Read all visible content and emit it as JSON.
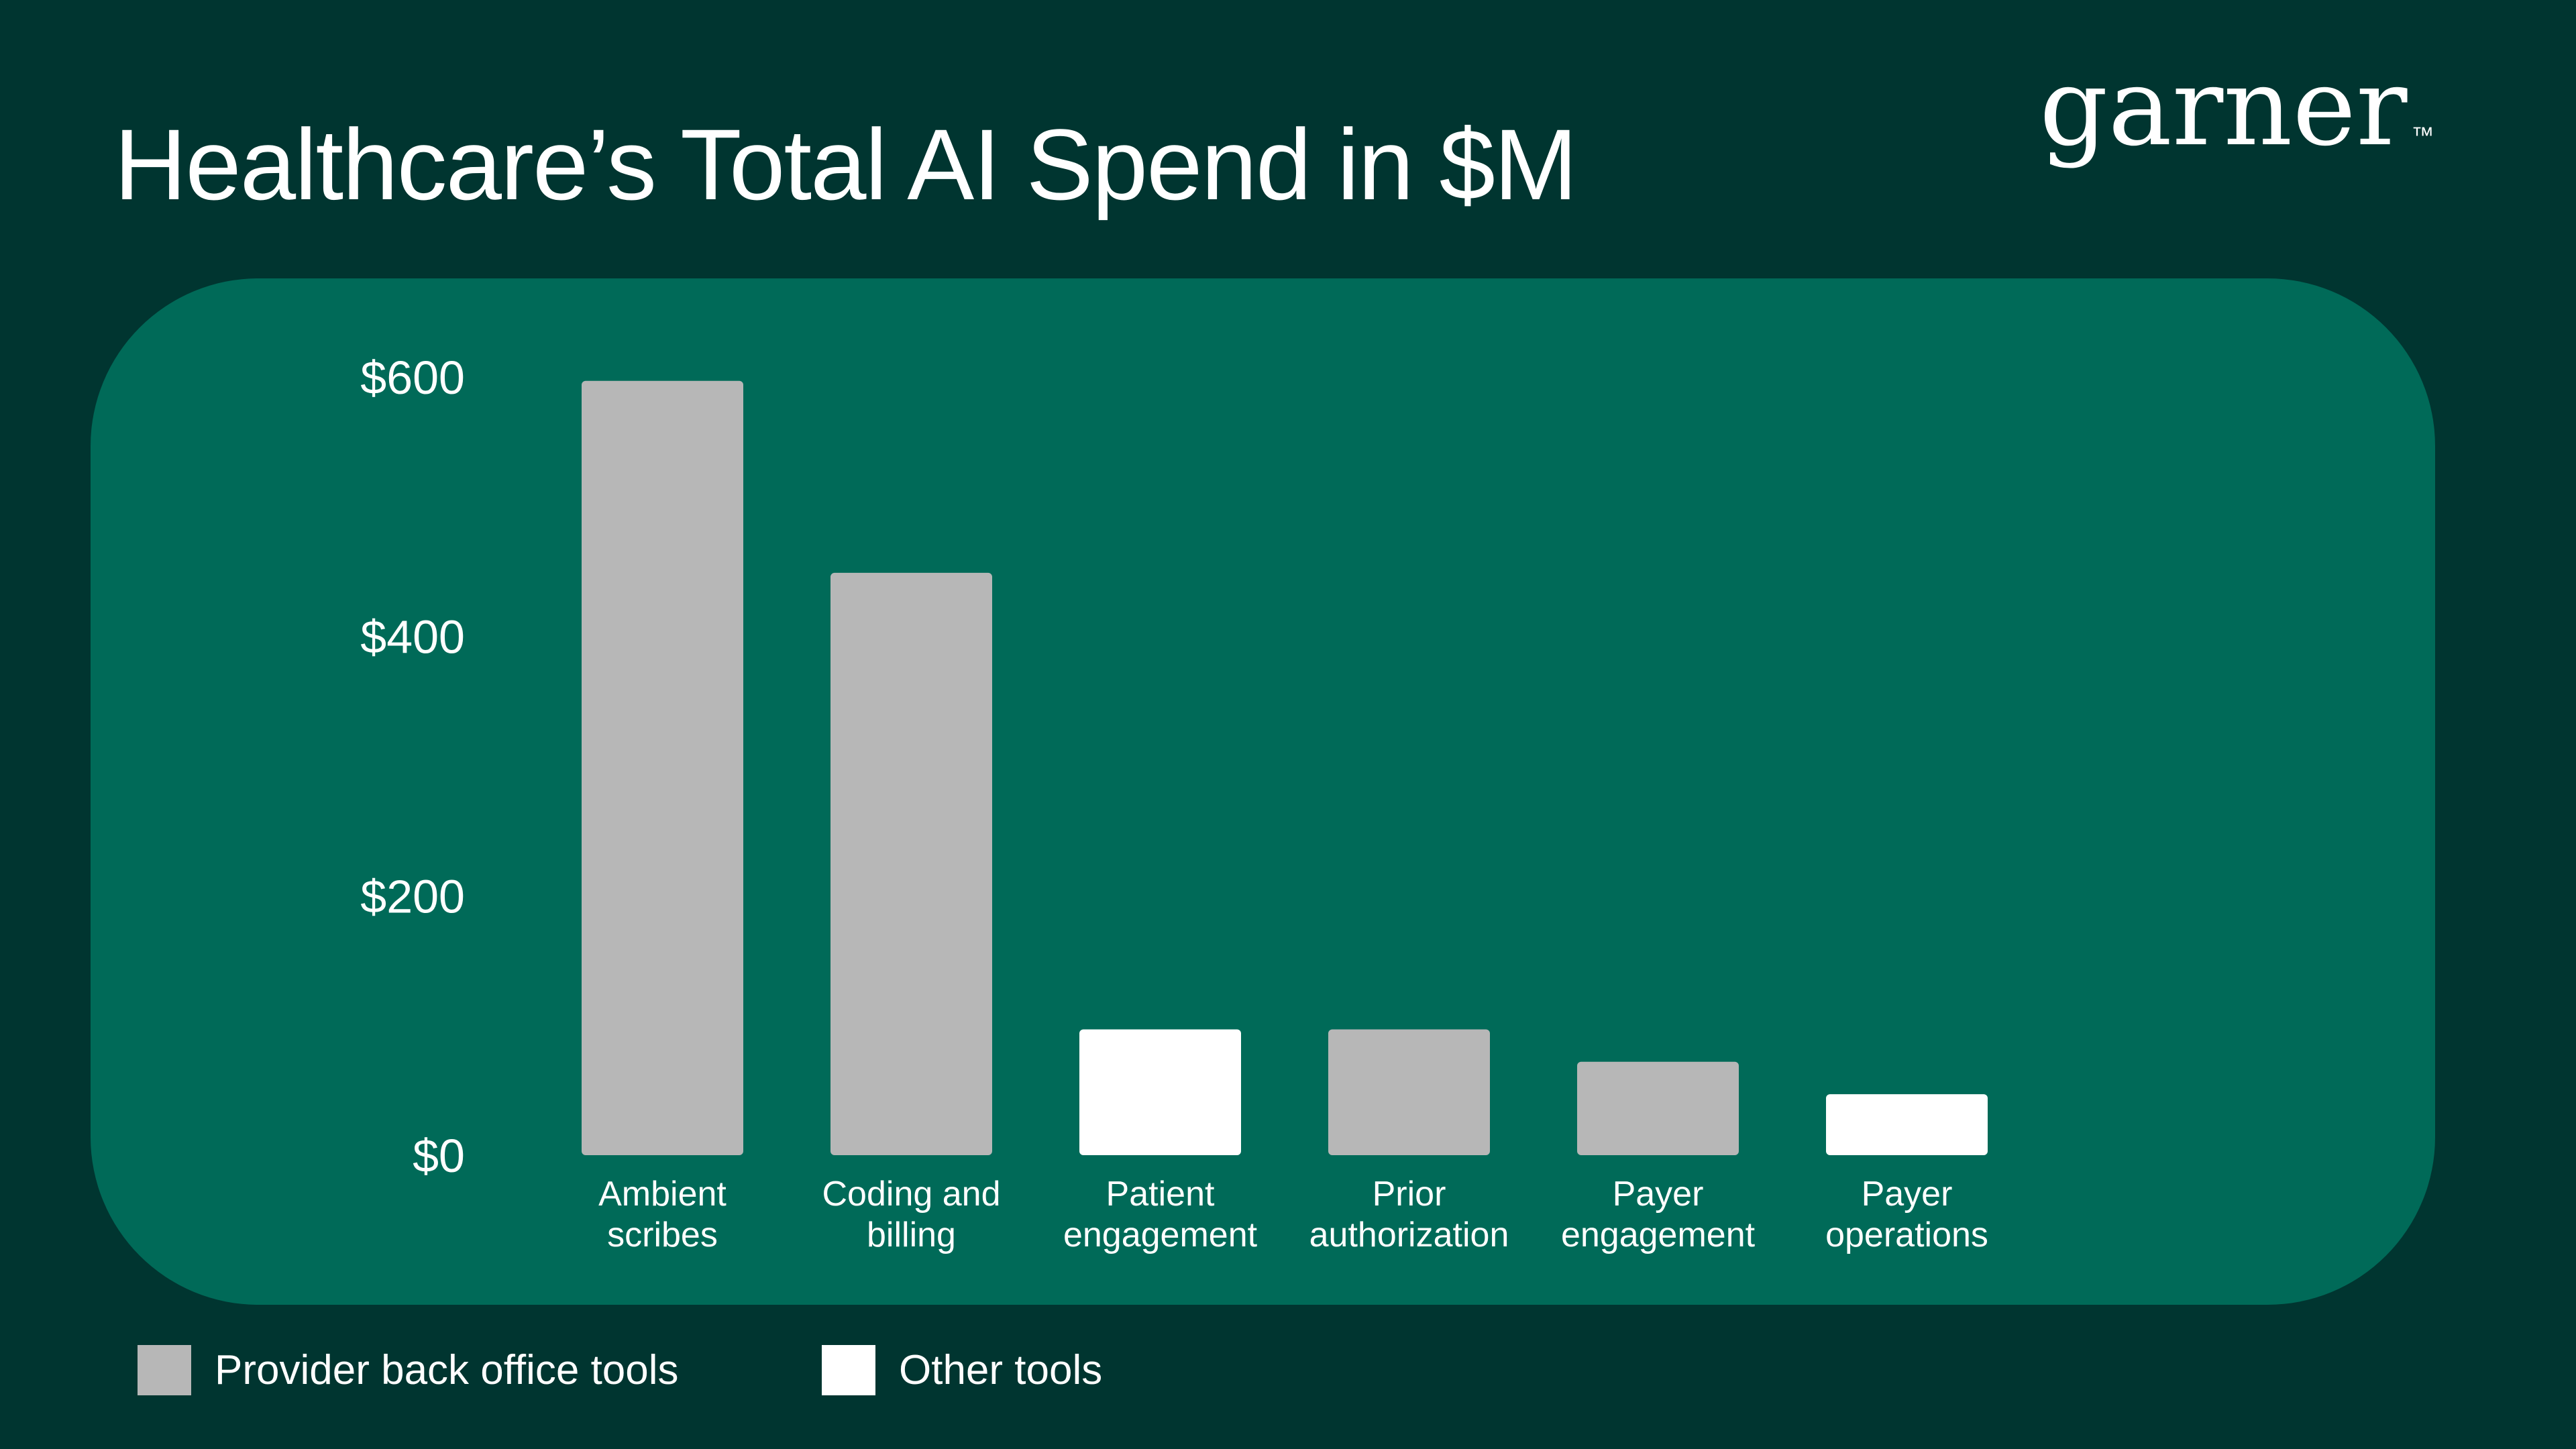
{
  "title": "Healthcare’s Total AI Spend in $M",
  "logo": {
    "text": "garner",
    "trademark": "™"
  },
  "colors": {
    "background": "#003530",
    "panel": "#006a58",
    "provider_back_office": "#b7b7b7",
    "other": "#ffffff",
    "text": "#ffffff"
  },
  "legend": [
    {
      "label": "Provider back office tools",
      "color": "#b7b7b7"
    },
    {
      "label": "Other tools",
      "color": "#ffffff"
    }
  ],
  "chart_data": {
    "type": "bar",
    "title": "Healthcare’s Total AI Spend in $M",
    "xlabel": "",
    "ylabel": "",
    "ylim": [
      0,
      600
    ],
    "yticks": [
      0,
      200,
      400,
      600
    ],
    "ytick_labels": [
      "$0",
      "$200",
      "$400",
      "$600"
    ],
    "grid": false,
    "legend_position": "bottom-left",
    "categories": [
      [
        "Ambient",
        "scribes"
      ],
      [
        "Coding and",
        "billing"
      ],
      [
        "Patient",
        "engagement"
      ],
      [
        "Prior",
        "authorization"
      ],
      [
        "Payer",
        "engagement"
      ],
      [
        "Payer",
        "operations"
      ]
    ],
    "values": [
      597,
      449,
      97,
      97,
      72,
      47
    ],
    "groups": [
      "Provider back office tools",
      "Provider back office tools",
      "Other tools",
      "Provider back office tools",
      "Provider back office tools",
      "Other tools"
    ]
  }
}
